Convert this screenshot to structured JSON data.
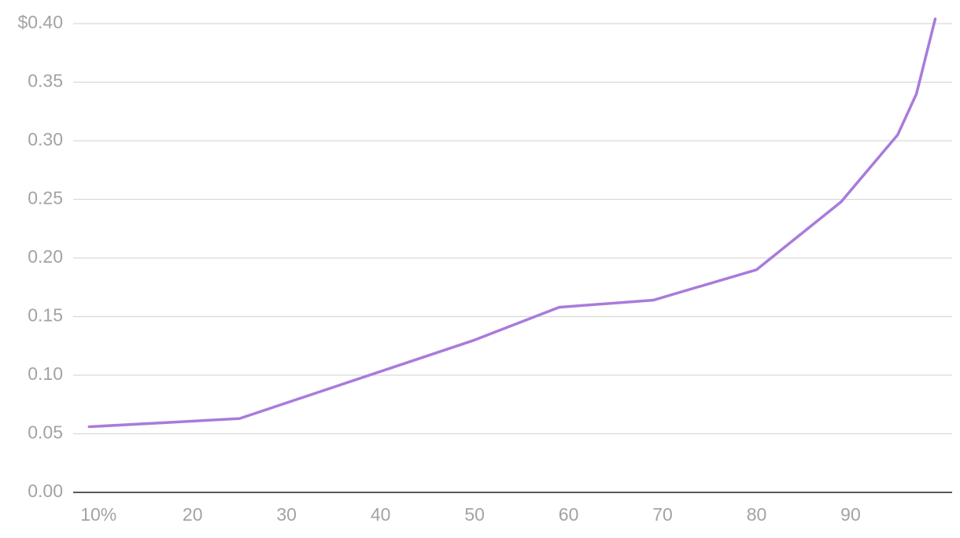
{
  "chart_data": {
    "type": "line",
    "x": [
      9,
      25,
      50,
      59,
      69,
      80,
      89,
      95,
      97,
      99
    ],
    "values": [
      0.056,
      0.063,
      0.13,
      0.158,
      0.164,
      0.19,
      0.248,
      0.305,
      0.34,
      0.404
    ],
    "color": "#a97bdb",
    "xlim": [
      7.3,
      100.8
    ],
    "xticks": [
      {
        "value": 10,
        "label": "10%"
      },
      20,
      30,
      40,
      50,
      60,
      70,
      80,
      90
    ],
    "ylim": [
      0,
      0.4
    ],
    "yticks": [
      {
        "value": 0,
        "label": "0.00"
      },
      0.05,
      {
        "value": 0.1,
        "label": "0.10"
      },
      0.15,
      {
        "value": 0.2,
        "label": "0.20"
      },
      0.25,
      {
        "value": 0.3,
        "label": "0.30"
      },
      0.35,
      {
        "value": 0.4,
        "label": "$0.40"
      }
    ],
    "grid": true
  }
}
